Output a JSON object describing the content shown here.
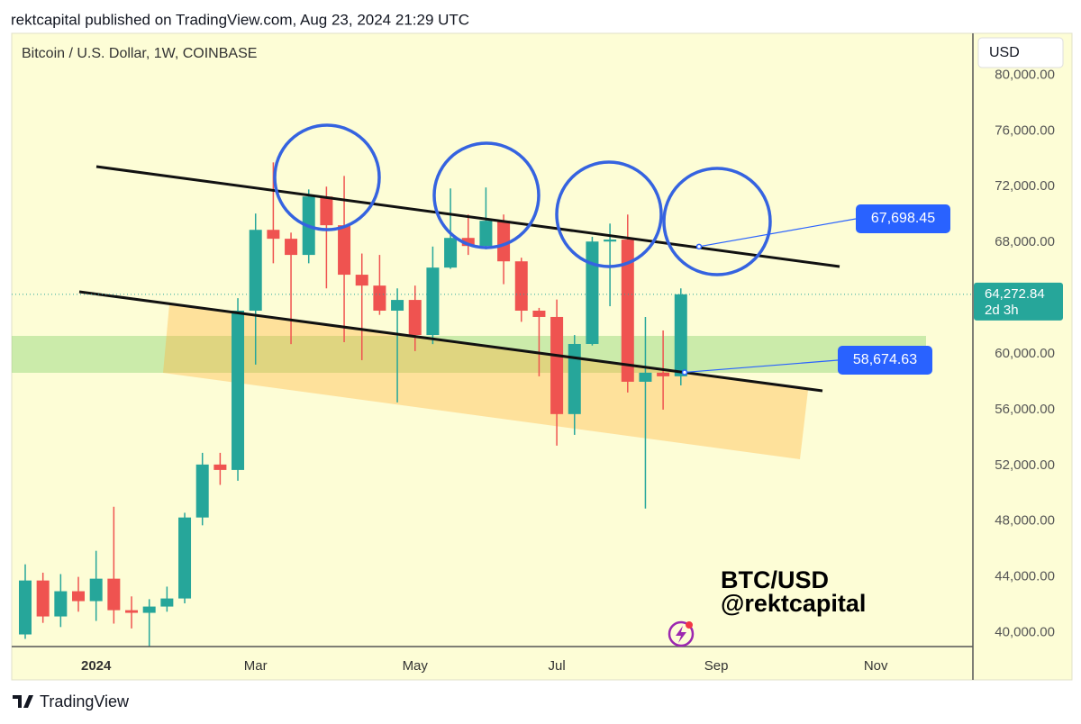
{
  "chart_data": {
    "type": "candlestick",
    "header": "rektcapital published on TradingView.com, Aug 23, 2024 21:29 UTC",
    "title": "Bitcoin / U.S. Dollar, 1W, COINBASE",
    "currency": "USD",
    "watermark": [
      "BTC/USD",
      "@rektcapital"
    ],
    "footer": "TradingView",
    "up_color": "#26a69a",
    "down_color": "#ef5350",
    "grid": false,
    "categories": [
      null,
      null,
      null,
      null,
      "2024",
      null,
      null,
      null,
      null,
      null,
      null,
      null,
      null,
      "Mar",
      null,
      null,
      null,
      null,
      null,
      null,
      null,
      null,
      "May",
      null,
      null,
      null,
      null,
      null,
      null,
      null,
      "Jul",
      null,
      null,
      null,
      null,
      null,
      null,
      null,
      null,
      "Sep",
      null,
      null,
      null,
      null,
      null,
      null,
      null,
      null,
      "Nov",
      null,
      null,
      null,
      null,
      null
    ],
    "open": [
      39870,
      43740,
      41160,
      42970,
      42260,
      43870,
      41610,
      41420,
      41870,
      42450,
      48260,
      52060,
      51670,
      63100,
      68900,
      68260,
      67100,
      71290,
      69230,
      65680,
      64900,
      63100,
      63870,
      61350,
      66190,
      68320,
      67740,
      69550,
      66640,
      63100,
      62650,
      55680,
      60710,
      68060,
      68200,
      58000,
      58650,
      58390,
      null,
      null,
      null,
      null,
      null,
      null,
      null,
      null,
      null,
      null,
      null,
      null,
      null,
      null,
      null,
      null
    ],
    "high": [
      44900,
      44300,
      44200,
      44000,
      45870,
      49030,
      42600,
      42400,
      43300,
      48600,
      52900,
      52900,
      64000,
      70070,
      73740,
      68700,
      71800,
      72000,
      72770,
      67200,
      67100,
      64700,
      64900,
      67700,
      71870,
      70000,
      71940,
      70000,
      66900,
      63300,
      63900,
      61350,
      68400,
      69350,
      70000,
      62650,
      61680,
      64700,
      null,
      null,
      null,
      null,
      null,
      null,
      null,
      null,
      null,
      null,
      null,
      null,
      null,
      null,
      null,
      null
    ],
    "low": [
      39550,
      40700,
      40400,
      41500,
      40840,
      40650,
      40300,
      38900,
      41500,
      42100,
      47700,
      50600,
      50900,
      59230,
      66500,
      60700,
      66500,
      64700,
      60840,
      59550,
      62800,
      56520,
      60200,
      60700,
      66100,
      67100,
      67500,
      65000,
      62300,
      58390,
      53420,
      54190,
      60600,
      63420,
      57230,
      48900,
      56000,
      57740,
      null,
      null,
      null,
      null,
      null,
      null,
      null,
      null,
      null,
      null,
      null,
      null,
      null,
      null,
      null,
      null
    ],
    "close": [
      43740,
      41160,
      42970,
      42260,
      43870,
      41610,
      41420,
      41870,
      42450,
      48260,
      52060,
      51670,
      63100,
      68900,
      68260,
      67100,
      71290,
      69230,
      65680,
      64900,
      63100,
      63870,
      61350,
      66190,
      68320,
      67740,
      69550,
      66640,
      63100,
      62650,
      55680,
      60710,
      68060,
      68200,
      58000,
      58650,
      58390,
      64272.84,
      null,
      null,
      null,
      null,
      null,
      null,
      null,
      null,
      null,
      null,
      null,
      null,
      null,
      null,
      null,
      null
    ],
    "ylim": [
      39000,
      83000
    ],
    "yticks": [
      {
        "value": 40000,
        "label": "40,000.00"
      },
      {
        "value": 44000,
        "label": "44,000.00"
      },
      {
        "value": 48000,
        "label": "48,000.00"
      },
      {
        "value": 52000,
        "label": "52,000.00"
      },
      {
        "value": 56000,
        "label": "56,000.00"
      },
      {
        "value": 60000,
        "label": "60,000.00"
      },
      {
        "value": 64000,
        "label": "64,000.00"
      },
      {
        "value": 68000,
        "label": "68,000.00"
      },
      {
        "value": 72000,
        "label": "72,000.00"
      },
      {
        "value": 76000,
        "label": "76,000.00"
      },
      {
        "value": 80000,
        "label": "80,000.00"
      }
    ],
    "last_price": {
      "value": 64272.84,
      "label": "64,272.84"
    },
    "countdown": "2d 3h",
    "annotations": [
      {
        "value": 67698.45,
        "label": "67,698.45"
      },
      {
        "value": 58674.63,
        "label": "58,674.63"
      }
    ]
  }
}
